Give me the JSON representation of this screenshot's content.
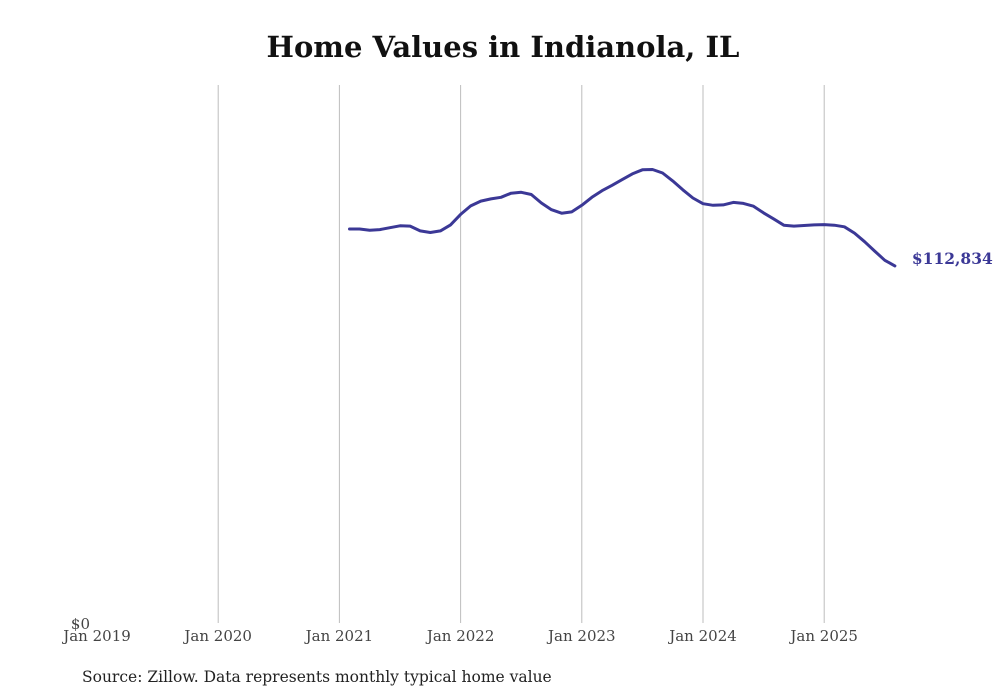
{
  "chart_data": {
    "type": "line",
    "title": "Home Values in Indianola, IL",
    "xlabel": "",
    "ylabel": "",
    "x_ticks": [
      "Jan 2019",
      "Jan 2020",
      "Jan 2021",
      "Jan 2022",
      "Jan 2023",
      "Jan 2024",
      "Jan 2025"
    ],
    "y_ticks": [
      "$0"
    ],
    "ylim": [
      0,
      170000
    ],
    "grid": "vertical",
    "series": [
      {
        "color": "#3b3896",
        "end_label": "$112,834",
        "points": [
          [
            "2021-02",
            124500
          ],
          [
            "2021-03",
            124500
          ],
          [
            "2021-04",
            124100
          ],
          [
            "2021-05",
            124300
          ],
          [
            "2021-06",
            124900
          ],
          [
            "2021-07",
            125500
          ],
          [
            "2021-08",
            125400
          ],
          [
            "2021-09",
            123900
          ],
          [
            "2021-10",
            123400
          ],
          [
            "2021-11",
            123900
          ],
          [
            "2021-12",
            125800
          ],
          [
            "2022-01",
            129100
          ],
          [
            "2022-02",
            131800
          ],
          [
            "2022-03",
            133300
          ],
          [
            "2022-04",
            134000
          ],
          [
            "2022-05",
            134500
          ],
          [
            "2022-06",
            135800
          ],
          [
            "2022-07",
            136100
          ],
          [
            "2022-08",
            135400
          ],
          [
            "2022-09",
            132700
          ],
          [
            "2022-10",
            130600
          ],
          [
            "2022-11",
            129500
          ],
          [
            "2022-12",
            129900
          ],
          [
            "2023-01",
            132000
          ],
          [
            "2023-02",
            134500
          ],
          [
            "2023-03",
            136600
          ],
          [
            "2023-04",
            138300
          ],
          [
            "2023-05",
            140100
          ],
          [
            "2023-06",
            141900
          ],
          [
            "2023-07",
            143200
          ],
          [
            "2023-08",
            143300
          ],
          [
            "2023-09",
            142200
          ],
          [
            "2023-10",
            139700
          ],
          [
            "2023-11",
            136900
          ],
          [
            "2023-12",
            134300
          ],
          [
            "2024-01",
            132500
          ],
          [
            "2024-02",
            132000
          ],
          [
            "2024-03",
            132100
          ],
          [
            "2024-04",
            132900
          ],
          [
            "2024-05",
            132600
          ],
          [
            "2024-06",
            131700
          ],
          [
            "2024-07",
            129600
          ],
          [
            "2024-08",
            127700
          ],
          [
            "2024-09",
            125700
          ],
          [
            "2024-10",
            125400
          ],
          [
            "2024-11",
            125600
          ],
          [
            "2024-12",
            125800
          ],
          [
            "2025-01",
            125900
          ],
          [
            "2025-02",
            125700
          ],
          [
            "2025-03",
            125200
          ],
          [
            "2025-04",
            123200
          ],
          [
            "2025-05",
            120500
          ],
          [
            "2025-06",
            117500
          ],
          [
            "2025-07",
            114600
          ],
          [
            "2025-08",
            112834
          ]
        ]
      }
    ]
  },
  "footer": {
    "source": "Source: Zillow. Data represents monthly typical home value"
  }
}
